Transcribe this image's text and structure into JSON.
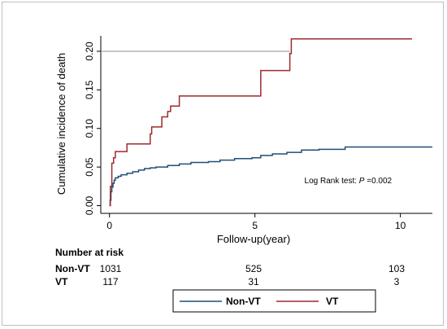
{
  "chart_data": {
    "type": "line",
    "step": true,
    "xlabel": "Follow-up(year)",
    "ylabel": "Cumulative incidence of death",
    "xlim": [
      -0.3,
      11.1
    ],
    "ylim": [
      -0.01,
      0.22
    ],
    "xticks": [
      0,
      5,
      10
    ],
    "yticks": [
      0.0,
      0.05,
      0.1,
      0.15,
      0.2
    ],
    "ytick_labels": [
      "0.00",
      "0.05",
      "0.10",
      "0.15",
      "0.20"
    ],
    "grid": false,
    "reference_line": 0.2,
    "annotation": {
      "prefix": "Log Rank test: ",
      "symbol": "P",
      "suffix": " =0.002",
      "x": 6.7,
      "y": 0.029
    },
    "series": [
      {
        "name": "Non-VT",
        "color": "#1f4e79",
        "points": [
          [
            0,
            0
          ],
          [
            0.02,
            0.007
          ],
          [
            0.05,
            0.018
          ],
          [
            0.08,
            0.024
          ],
          [
            0.12,
            0.029
          ],
          [
            0.16,
            0.033
          ],
          [
            0.2,
            0.036
          ],
          [
            0.3,
            0.038
          ],
          [
            0.4,
            0.04
          ],
          [
            0.6,
            0.042
          ],
          [
            0.8,
            0.044
          ],
          [
            1.0,
            0.046
          ],
          [
            1.2,
            0.048
          ],
          [
            1.4,
            0.049
          ],
          [
            1.6,
            0.05
          ],
          [
            2.0,
            0.052
          ],
          [
            2.4,
            0.054
          ],
          [
            2.8,
            0.056
          ],
          [
            3.4,
            0.057
          ],
          [
            3.8,
            0.059
          ],
          [
            4.3,
            0.061
          ],
          [
            4.9,
            0.062
          ],
          [
            5.2,
            0.065
          ],
          [
            5.6,
            0.067
          ],
          [
            6.1,
            0.069
          ],
          [
            6.6,
            0.072
          ],
          [
            7.2,
            0.073
          ],
          [
            8.1,
            0.076
          ],
          [
            9.0,
            0.076
          ],
          [
            11.1,
            0.076
          ]
        ]
      },
      {
        "name": "VT",
        "color": "#9e2a2f",
        "points": [
          [
            0,
            0
          ],
          [
            0.03,
            0.025
          ],
          [
            0.08,
            0.055
          ],
          [
            0.14,
            0.062
          ],
          [
            0.2,
            0.07
          ],
          [
            0.6,
            0.08
          ],
          [
            1.4,
            0.093
          ],
          [
            1.45,
            0.102
          ],
          [
            1.8,
            0.115
          ],
          [
            2.0,
            0.122
          ],
          [
            2.1,
            0.129
          ],
          [
            2.4,
            0.142
          ],
          [
            5.2,
            0.175
          ],
          [
            6.2,
            0.197
          ],
          [
            6.25,
            0.216
          ],
          [
            10.4,
            0.216
          ]
        ]
      }
    ]
  },
  "risk_table": {
    "title": "Number at risk",
    "rows": [
      {
        "label": "Non-VT",
        "values": [
          "1031",
          "525",
          "103"
        ]
      },
      {
        "label": "VT",
        "values": [
          "117",
          "31",
          "3"
        ]
      }
    ]
  },
  "legend": {
    "items": [
      {
        "label": "Non-VT",
        "color": "#1f4e79"
      },
      {
        "label": "VT",
        "color": "#9e2a2f"
      }
    ]
  }
}
